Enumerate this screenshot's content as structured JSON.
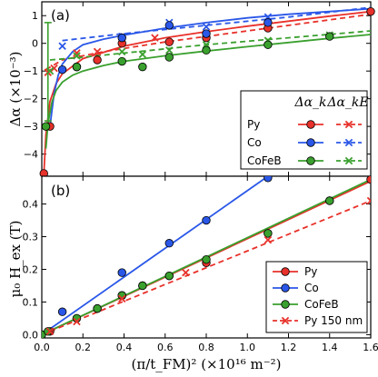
{
  "chart_data": [
    {
      "type": "scatter",
      "panel_label": "(a)",
      "ylabel": "Δα (×10⁻³)",
      "xlim": [
        0,
        1.6
      ],
      "ylim": [
        -4.8,
        1.5
      ],
      "yticks": [
        -4,
        -3,
        -2,
        -1,
        0,
        1
      ],
      "yticklabels": [
        "−4",
        "−3",
        "−2",
        "−1",
        "0",
        "1"
      ],
      "legend_header": [
        "Δα_k",
        "Δα_kE"
      ],
      "legend_entries": [
        "Py",
        "Co",
        "CoFeB"
      ],
      "series": [
        {
          "name": "Py",
          "color": "#e8312a",
          "circles": {
            "x": [
              0.01,
              0.04,
              0.17,
              0.27,
              0.39,
              0.62,
              0.8,
              1.1,
              1.6
            ],
            "y": [
              -4.7,
              -3.0,
              -0.85,
              -0.6,
              0.0,
              0.05,
              0.2,
              0.55,
              1.15
            ]
          },
          "crosses": {
            "x": [
              0.03,
              0.06,
              0.17,
              0.27,
              0.39,
              0.55,
              0.8,
              1.1
            ],
            "y": [
              -1.05,
              -0.9,
              -0.35,
              -0.3,
              0.1,
              0.2,
              0.35,
              0.6
            ]
          },
          "fit_k": {
            "x": [
              0.01,
              0.02,
              0.04,
              0.07,
              0.1,
              0.2,
              0.4,
              0.6,
              0.8,
              1.0,
              1.2,
              1.4,
              1.6
            ],
            "y": [
              -4.7,
              -3.3,
              -2.1,
              -1.45,
              -1.1,
              -0.55,
              -0.1,
              0.2,
              0.42,
              0.62,
              0.8,
              0.98,
              1.15
            ]
          },
          "fit_kE": {
            "x": [
              0.02,
              0.1,
              0.3,
              0.6,
              1.0,
              1.3,
              1.6
            ],
            "y": [
              -0.95,
              -0.6,
              -0.3,
              0.05,
              0.45,
              0.75,
              1.05
            ]
          }
        },
        {
          "name": "Co",
          "color": "#2a57e8",
          "circles": {
            "x": [
              0.1,
              0.39,
              0.62,
              0.8,
              1.1
            ],
            "y": [
              -0.95,
              0.2,
              0.65,
              0.35,
              0.75
            ]
          },
          "crosses": {
            "x": [
              0.1,
              0.39,
              0.62,
              0.8,
              1.1
            ],
            "y": [
              -0.1,
              0.25,
              0.75,
              0.6,
              0.95
            ]
          },
          "fit_k": {
            "x": [
              0.04,
              0.06,
              0.08,
              0.1,
              0.15,
              0.2,
              0.3,
              0.4,
              0.6,
              0.8,
              1.0,
              1.2,
              1.4,
              1.6
            ],
            "y": [
              -3.0,
              -1.8,
              -1.15,
              -0.75,
              -0.3,
              -0.05,
              0.15,
              0.3,
              0.55,
              0.75,
              0.92,
              1.05,
              1.15,
              1.25
            ]
          },
          "fit_kE": {
            "x": [
              0.1,
              0.4,
              0.8,
              1.2,
              1.6
            ],
            "y": [
              0.1,
              0.35,
              0.65,
              0.95,
              1.3
            ]
          }
        },
        {
          "name": "CoFeB",
          "color": "#3aa02e",
          "circles": {
            "x": [
              0.02,
              0.17,
              0.39,
              0.49,
              0.62,
              0.8,
              1.1,
              1.4
            ],
            "y": [
              -3.0,
              -0.85,
              -0.65,
              -0.85,
              -0.5,
              -0.25,
              -0.05,
              0.25
            ]
          },
          "crosses": {
            "x": [
              0.04,
              0.17,
              0.39,
              0.49,
              0.62,
              0.8,
              1.1,
              1.4
            ],
            "y": [
              -1.0,
              -0.45,
              -0.3,
              -0.4,
              -0.25,
              -0.05,
              0.1,
              0.3
            ]
          },
          "fit_k": {
            "x": [
              0.02,
              0.03,
              0.05,
              0.07,
              0.1,
              0.15,
              0.2,
              0.3,
              0.4,
              0.6,
              0.8,
              1.0,
              1.2,
              1.4,
              1.6
            ],
            "y": [
              -3.8,
              -2.9,
              -2.1,
              -1.7,
              -1.4,
              -1.15,
              -1.0,
              -0.8,
              -0.65,
              -0.45,
              -0.28,
              -0.12,
              0.03,
              0.18,
              0.32
            ]
          },
          "fit_kE": {
            "x": [
              0.04,
              0.2,
              0.4,
              0.8,
              1.2,
              1.6
            ],
            "y": [
              -0.6,
              -0.5,
              -0.35,
              -0.05,
              0.2,
              0.45
            ]
          },
          "error_bar": {
            "x": 0.03,
            "y": -0.7,
            "low": -2.8,
            "high": 0.75
          }
        }
      ]
    },
    {
      "type": "scatter",
      "panel_label": "(b)",
      "ylabel": "μ₀ H_ex (T)",
      "xlabel": "(π/t_FM)² (×10¹⁶ m⁻²)",
      "xlim": [
        0,
        1.6
      ],
      "ylim": [
        -0.01,
        0.485
      ],
      "xticks": [
        0,
        0.2,
        0.4,
        0.6,
        0.8,
        1.0,
        1.2,
        1.4,
        1.6
      ],
      "xticklabels": [
        "0.0",
        "0.2",
        "0.4",
        "0.6",
        "0.8",
        "1.0",
        "1.2",
        "1.4",
        "1.6"
      ],
      "yticks": [
        0,
        0.1,
        0.2,
        0.3,
        0.4
      ],
      "yticklabels": [
        "0.0",
        "0.1",
        "0.2",
        "0.3",
        "0.4"
      ],
      "legend_entries": [
        "Py",
        "Co",
        "CoFeB",
        "Py 150 nm"
      ],
      "series": [
        {
          "name": "Py",
          "color": "#e8312a",
          "circles": {
            "x": [
              0.0,
              0.04,
              0.17,
              0.27,
              0.39,
              0.49,
              0.62,
              0.8,
              1.1,
              1.4,
              1.6
            ],
            "y": [
              0.0,
              0.01,
              0.05,
              0.08,
              0.12,
              0.15,
              0.18,
              0.22,
              0.31,
              0.41,
              0.475
            ]
          },
          "fit": {
            "x": [
              0,
              1.6
            ],
            "y": [
              0.0,
              0.47
            ]
          }
        },
        {
          "name": "Co",
          "color": "#2a57e8",
          "circles": {
            "x": [
              0.0,
              0.1,
              0.39,
              0.62,
              0.8,
              1.1
            ],
            "y": [
              0.0,
              0.07,
              0.19,
              0.28,
              0.35,
              0.48
            ]
          },
          "fit": {
            "x": [
              0,
              1.1
            ],
            "y": [
              0.0,
              0.485
            ]
          }
        },
        {
          "name": "CoFeB",
          "color": "#3aa02e",
          "circles": {
            "x": [
              0.0,
              0.03,
              0.17,
              0.27,
              0.39,
              0.49,
              0.62,
              0.8,
              1.1,
              1.4
            ],
            "y": [
              0.0,
              0.01,
              0.05,
              0.08,
              0.12,
              0.15,
              0.18,
              0.23,
              0.31,
              0.41
            ]
          },
          "fit": {
            "x": [
              0,
              1.6
            ],
            "y": [
              0.0,
              0.475
            ]
          }
        },
        {
          "name": "Py 150 nm",
          "color": "#e8312a",
          "crosses": {
            "x": [
              0.04,
              0.17,
              0.39,
              0.7,
              1.1,
              1.6
            ],
            "y": [
              0.01,
              0.04,
              0.11,
              0.19,
              0.29,
              0.41
            ]
          },
          "fit": {
            "x": [
              0,
              1.6
            ],
            "y": [
              0.0,
              0.41
            ]
          }
        }
      ]
    }
  ]
}
